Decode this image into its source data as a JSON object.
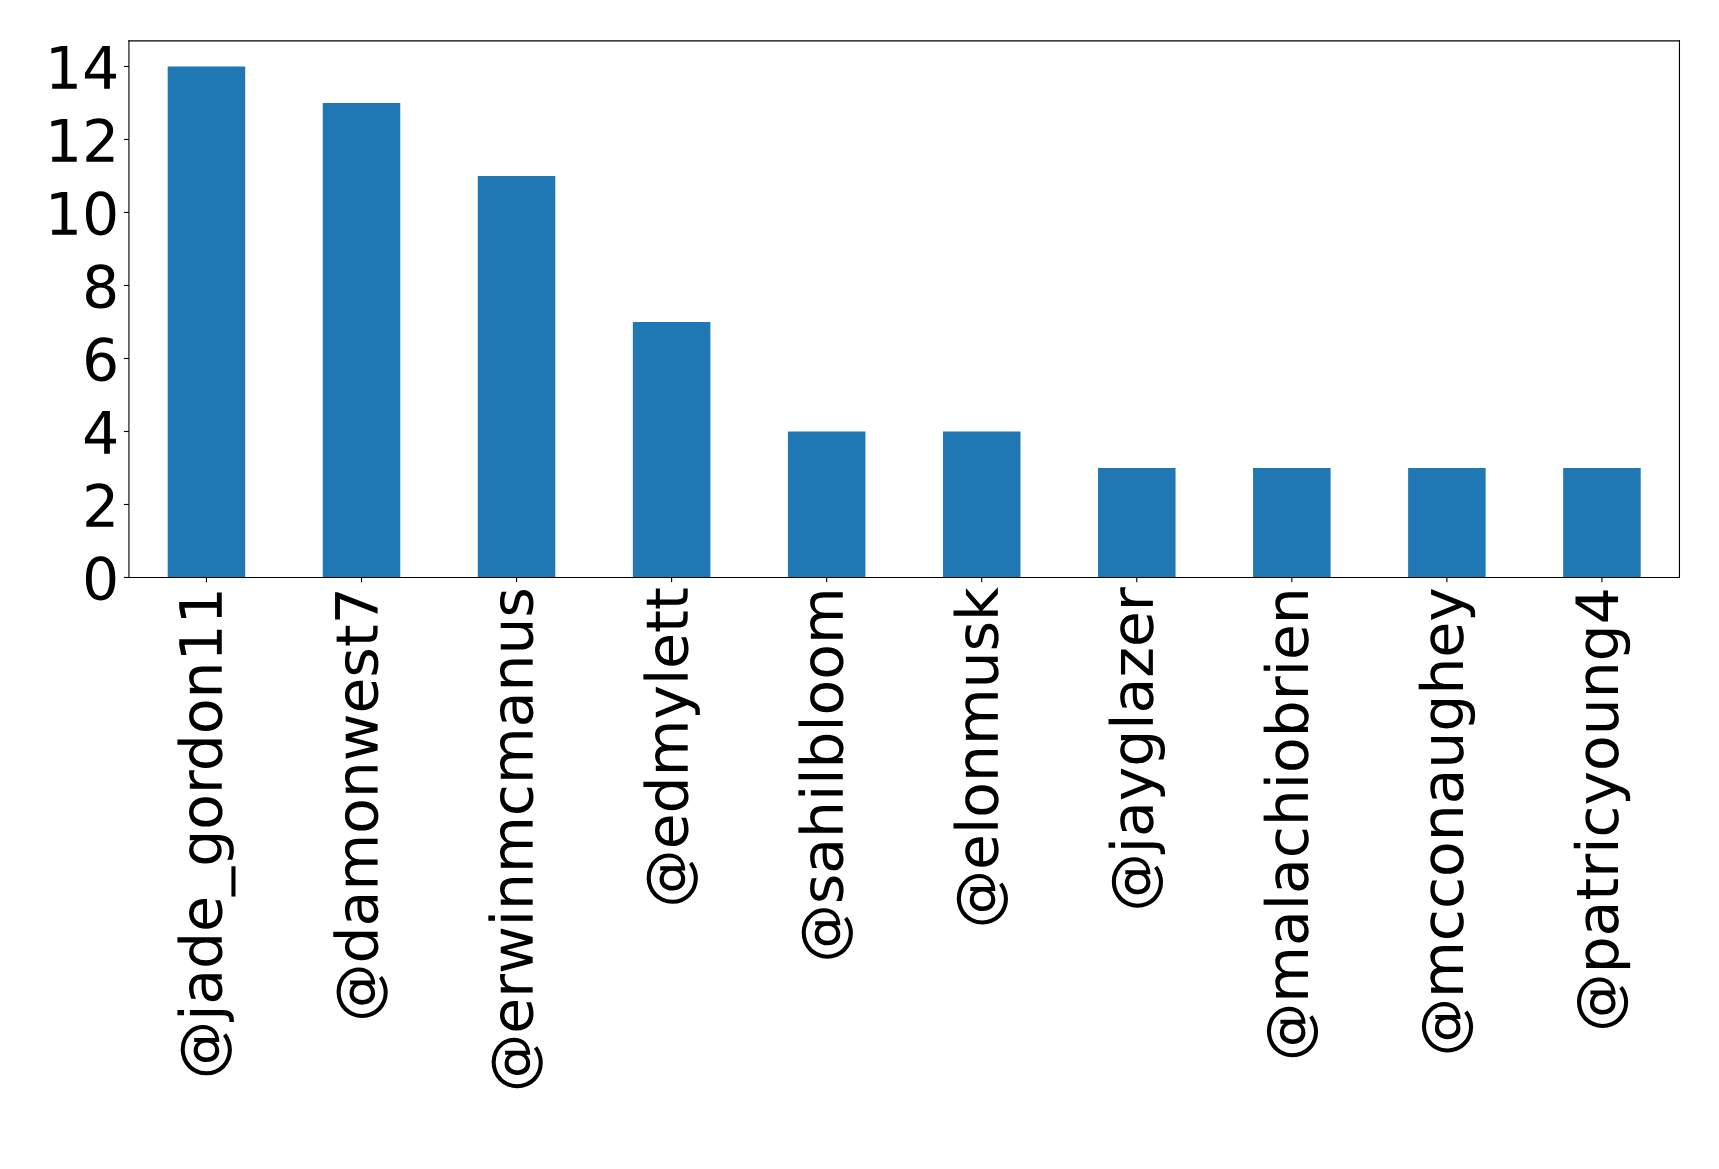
{
  "chart_data": {
    "type": "bar",
    "categories": [
      "@jade_gordon11",
      "@damonwest7",
      "@erwinmcmanus",
      "@edmylett",
      "@sahilbloom",
      "@elonmusk",
      "@jayglazer",
      "@malachiobrien",
      "@mcconaughey",
      "@patricyoung4"
    ],
    "values": [
      14,
      13,
      11,
      7,
      4,
      4,
      3,
      3,
      3,
      3
    ],
    "color": "#1f77b4",
    "ylim": [
      0,
      14.7
    ],
    "yticks": [
      0,
      2,
      4,
      6,
      8,
      10,
      12,
      14
    ],
    "grid": false
  }
}
